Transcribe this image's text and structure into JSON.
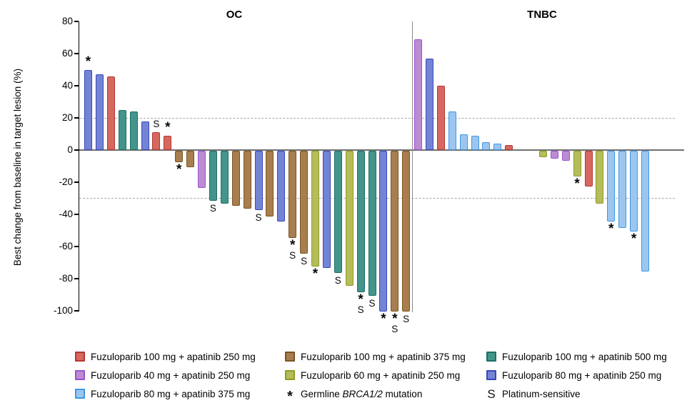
{
  "chart_data": {
    "type": "bar",
    "title_left": "OC",
    "title_right": "TNBC",
    "ylabel": "Best change from baseline in target lesion (%)",
    "ylim": [
      -100,
      80
    ],
    "yticks": [
      80,
      60,
      40,
      20,
      0,
      -20,
      -40,
      -60,
      -80,
      -100
    ],
    "reference_lines": [
      20,
      -30
    ],
    "grid": "dashed reference lines at +20 and -30 only",
    "legend_position": "bottom",
    "groups": {
      "red": {
        "label": "Fuzuloparib 100 mg + apatinib 250 mg",
        "fill": "#D6685F",
        "stroke": "#B23832"
      },
      "purple": {
        "label": "Fuzuloparib 40 mg + apatinib 250 mg",
        "fill": "#BC8CD3",
        "stroke": "#9C51CF"
      },
      "lightblue": {
        "label": "Fuzuloparib 80 mg + apatinib 375 mg",
        "fill": "#9DC6EE",
        "stroke": "#3E97E6"
      },
      "brown": {
        "label": "Fuzuloparib 100 mg + apatinib 375 mg",
        "fill": "#A87E4E",
        "stroke": "#7A5420"
      },
      "yellowgreen": {
        "label": "Fuzuloparib 60 mg + apatinib 250 mg",
        "fill": "#B5BC5A",
        "stroke": "#8E9C25"
      },
      "teal": {
        "label": "Fuzuloparib 100 mg + apatinib 500 mg",
        "fill": "#43948B",
        "stroke": "#1E6F66"
      },
      "blue": {
        "label": "Fuzuloparib 80 mg + apatinib 250 mg",
        "fill": "#7484D4",
        "stroke": "#3847BD"
      }
    },
    "flag_meaning": {
      "*": "Germline BRCA1/2 mutation",
      "S": "Platinum-sensitive"
    },
    "oc_bars": [
      {
        "v": 50,
        "g": "blue",
        "f": "*"
      },
      {
        "v": 47,
        "g": "blue",
        "f": ""
      },
      {
        "v": 46,
        "g": "red",
        "f": ""
      },
      {
        "v": 25,
        "g": "teal",
        "f": ""
      },
      {
        "v": 24,
        "g": "teal",
        "f": ""
      },
      {
        "v": 18,
        "g": "blue",
        "f": ""
      },
      {
        "v": 11,
        "g": "red",
        "f": "S"
      },
      {
        "v": 9,
        "g": "red",
        "f": "*"
      },
      {
        "v": -7,
        "g": "brown",
        "f": "*"
      },
      {
        "v": -10,
        "g": "brown",
        "f": ""
      },
      {
        "v": -23,
        "g": "purple",
        "f": ""
      },
      {
        "v": -31,
        "g": "teal",
        "f": "S"
      },
      {
        "v": -33,
        "g": "teal",
        "f": ""
      },
      {
        "v": -34,
        "g": "brown",
        "f": ""
      },
      {
        "v": -36,
        "g": "brown",
        "f": ""
      },
      {
        "v": -37,
        "g": "blue",
        "f": "S"
      },
      {
        "v": -41,
        "g": "brown",
        "f": ""
      },
      {
        "v": -44,
        "g": "blue",
        "f": ""
      },
      {
        "v": -54,
        "g": "brown",
        "f": "*S"
      },
      {
        "v": -64,
        "g": "brown",
        "f": "S"
      },
      {
        "v": -72,
        "g": "yellowgreen",
        "f": "*"
      },
      {
        "v": -73,
        "g": "blue",
        "f": ""
      },
      {
        "v": -76,
        "g": "teal",
        "f": "S"
      },
      {
        "v": -84,
        "g": "yellowgreen",
        "f": ""
      },
      {
        "v": -88,
        "g": "teal",
        "f": "*S"
      },
      {
        "v": -90,
        "g": "teal",
        "f": "S"
      },
      {
        "v": -100,
        "g": "blue",
        "f": "*"
      },
      {
        "v": -100,
        "g": "brown",
        "f": "*S"
      },
      {
        "v": -100,
        "g": "brown",
        "f": "S"
      }
    ],
    "tnbc_bars": [
      {
        "v": 69,
        "g": "purple",
        "f": ""
      },
      {
        "v": 57,
        "g": "blue",
        "f": ""
      },
      {
        "v": 40,
        "g": "red",
        "f": ""
      },
      {
        "v": 24,
        "g": "lightblue",
        "f": ""
      },
      {
        "v": 10,
        "g": "lightblue",
        "f": ""
      },
      {
        "v": 9,
        "g": "lightblue",
        "f": ""
      },
      {
        "v": 5,
        "g": "lightblue",
        "f": ""
      },
      {
        "v": 4,
        "g": "lightblue",
        "f": ""
      },
      {
        "v": 3,
        "g": "red",
        "f": ""
      },
      {
        "v": -4,
        "g": "yellowgreen",
        "f": ""
      },
      {
        "v": -5,
        "g": "purple",
        "f": ""
      },
      {
        "v": -6,
        "g": "purple",
        "f": ""
      },
      {
        "v": -16,
        "g": "yellowgreen",
        "f": "*"
      },
      {
        "v": -22,
        "g": "red",
        "f": ""
      },
      {
        "v": -33,
        "g": "yellowgreen",
        "f": ""
      },
      {
        "v": -44,
        "g": "lightblue",
        "f": "*"
      },
      {
        "v": -48,
        "g": "lightblue",
        "f": ""
      },
      {
        "v": -50,
        "g": "lightblue",
        "f": "*"
      },
      {
        "v": -75,
        "g": "lightblue",
        "f": ""
      }
    ],
    "tnbc_gap_after": 9,
    "tnbc_gap_slots": 2,
    "legend": {
      "columns": [
        [
          {
            "type": "swatch",
            "group": "red",
            "label": "Fuzuloparib 100 mg + apatinib 250 mg"
          },
          {
            "type": "swatch",
            "group": "purple",
            "label": "Fuzuloparib 40 mg + apatinib 250 mg"
          },
          {
            "type": "swatch",
            "group": "lightblue",
            "label": "Fuzuloparib 80 mg + apatinib 375 mg"
          }
        ],
        [
          {
            "type": "swatch",
            "group": "brown",
            "label": "Fuzuloparib 100 mg + apatinib 375 mg"
          },
          {
            "type": "swatch",
            "group": "yellowgreen",
            "label": "Fuzuloparib 60 mg + apatinib 250 mg"
          },
          {
            "type": "symbol",
            "symbol": "*",
            "label": "Germline BRCA1/2 mutation",
            "italic": "BRCA1/2"
          }
        ],
        [
          {
            "type": "swatch",
            "group": "teal",
            "label": "Fuzuloparib 100 mg + apatinib 500 mg"
          },
          {
            "type": "swatch",
            "group": "blue",
            "label": "Fuzuloparib 80 mg + apatinib 250 mg"
          },
          {
            "type": "symbol",
            "symbol": "S",
            "label": "Platinum-sensitive"
          }
        ]
      ]
    }
  }
}
